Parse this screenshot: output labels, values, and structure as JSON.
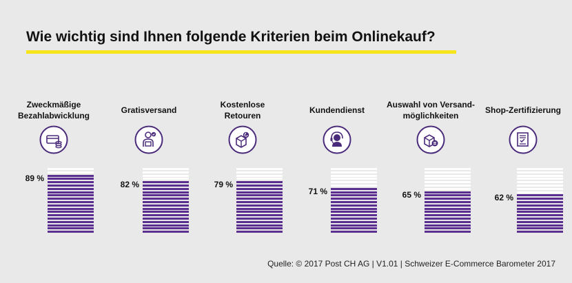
{
  "title": "Wie wichtig sind Ihnen folgende Kriterien beim Onlinekauf?",
  "source": "Quelle: © 2017 Post CH AG | V1.01 | Schweizer E-Commerce Barometer 2017",
  "colors": {
    "accent_underline": "#f6e51b",
    "bar_fill": "#5a2f8f",
    "bar_empty": "#ffffff",
    "icon_stroke": "#4a2a7a"
  },
  "chart_data": {
    "type": "bar",
    "categories": [
      "Zweckmäßige Bezahlabwicklung",
      "Gratisversand",
      "Kostenlose Retouren",
      "Kundendienst",
      "Auswahl von Versand-möglichkeiten",
      "Shop-Zertifizierung"
    ],
    "label_lines": [
      [
        "Zweckmäßige",
        "Bezahlabwicklung"
      ],
      [
        "Gratisversand"
      ],
      [
        "Kostenlose",
        "Retouren"
      ],
      [
        "Kundendienst"
      ],
      [
        "Auswahl von Versand-",
        "möglichkeiten"
      ],
      [
        "Shop-Zertifizierung"
      ]
    ],
    "values": [
      89,
      82,
      79,
      71,
      65,
      62
    ],
    "value_labels": [
      "89 %",
      "82 %",
      "79 %",
      "71 %",
      "65 %",
      "62 %"
    ],
    "ylim": [
      0,
      100
    ],
    "icons": [
      "payment-icon",
      "delivery-person-icon",
      "return-package-icon",
      "customer-service-headset-icon",
      "shipping-options-icon",
      "certificate-icon"
    ]
  }
}
